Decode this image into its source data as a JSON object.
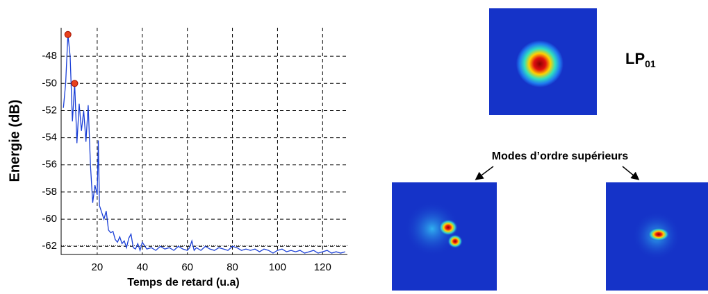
{
  "chart_data": {
    "type": "line",
    "x_label": "Temps de retard (u.a)",
    "y_label": "Energie (dB)",
    "xlim": [
      4,
      131
    ],
    "ylim": [
      -62.6,
      -45.9
    ],
    "xticks": [
      20,
      40,
      60,
      80,
      100,
      120
    ],
    "yticks": [
      -48,
      -50,
      -52,
      -54,
      -56,
      -58,
      -60,
      -62
    ],
    "grid": true,
    "series": [
      {
        "color": "#1a3fd6",
        "x": [
          5,
          6,
          7,
          8,
          9,
          10,
          11,
          12,
          13,
          14,
          15,
          16,
          17,
          18,
          19,
          20,
          20.5,
          21,
          22,
          23,
          24,
          25,
          26,
          27,
          28,
          29,
          30,
          31,
          32,
          33,
          34,
          35,
          36,
          37,
          38,
          39,
          40,
          42,
          44,
          46,
          48,
          50,
          52,
          54,
          56,
          58,
          60,
          61,
          62,
          63,
          64,
          66,
          68,
          70,
          72,
          74,
          76,
          78,
          80,
          82,
          84,
          86,
          88,
          90,
          92,
          94,
          96,
          98,
          100,
          102,
          104,
          106,
          108,
          110,
          112,
          114,
          116,
          118,
          120,
          122,
          124,
          126,
          128,
          130
        ],
        "values": [
          -51.8,
          -50,
          -46.4,
          -48,
          -52.8,
          -50,
          -54.4,
          -51.5,
          -53.5,
          -52,
          -54.3,
          -51.6,
          -56,
          -58.8,
          -57.5,
          -58.2,
          -54.2,
          -59,
          -59.5,
          -60,
          -59.4,
          -60.8,
          -61,
          -60.9,
          -61.5,
          -61.7,
          -61.3,
          -61.8,
          -61.6,
          -62.1,
          -61.4,
          -61.1,
          -62.1,
          -62.2,
          -61.8,
          -62.3,
          -61.7,
          -62.2,
          -62.1,
          -62.3,
          -62,
          -62.2,
          -62.1,
          -62.3,
          -62,
          -62.2,
          -62.3,
          -62.1,
          -61.6,
          -62.3,
          -62.1,
          -62.3,
          -62,
          -62.2,
          -62.3,
          -62.1,
          -62.2,
          -62.3,
          -62,
          -62.1,
          -62.3,
          -62.2,
          -62.3,
          -62.2,
          -62.4,
          -62.2,
          -62.3,
          -62.5,
          -62.3,
          -62.2,
          -62.4,
          -62.3,
          -62.4,
          -62.3,
          -62.5,
          -62.4,
          -62.3,
          -62.5,
          -62.4,
          -62.3,
          -62.5,
          -62.4,
          -62.5,
          -62.4
        ]
      }
    ],
    "markers": {
      "color": "#e8401c",
      "x": [
        7,
        10
      ],
      "values": [
        -46.4,
        -50
      ]
    },
    "hline": -61.95,
    "annotations": {
      "mode_label": "LP",
      "mode_subscript": "01",
      "higher_modes": "Modes d’ordre supérieurs"
    }
  }
}
